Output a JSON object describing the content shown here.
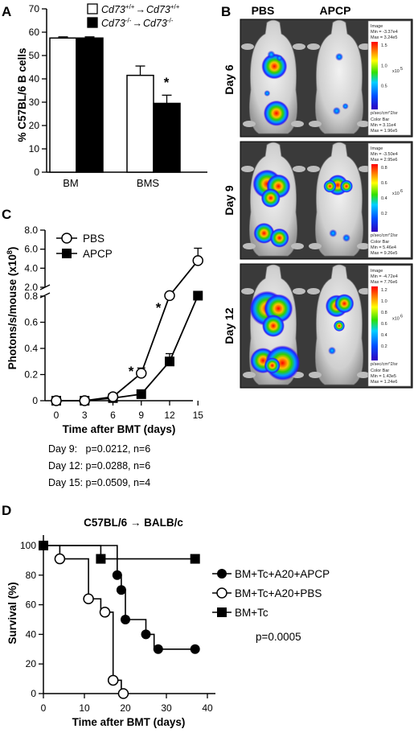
{
  "panels": {
    "A": "A",
    "B": "B",
    "C": "C",
    "D": "D"
  },
  "chart_data": [
    {
      "id": "A",
      "type": "bar",
      "ylabel": "% C57BL/6 B cells",
      "ylim": [
        0,
        70
      ],
      "yticks": [
        0,
        10,
        20,
        30,
        40,
        50,
        60,
        70
      ],
      "categories": [
        "BM",
        "BMS"
      ],
      "series": [
        {
          "name_sup_a": "Cd73",
          "name_sup_b": "+/+",
          "name_arrow": "→",
          "name_c": "Cd73",
          "name_sup_d": "+/+",
          "color": "#ffffff",
          "values": [
            57.5,
            41.5
          ],
          "errors": [
            0.5,
            4.0
          ]
        },
        {
          "name_sup_a": "Cd73",
          "name_sup_b": "-/-",
          "name_arrow": "→",
          "name_c": "Cd73",
          "name_sup_d": "-/-",
          "color": "#000000",
          "values": [
            57.5,
            29.5
          ],
          "errors": [
            0.5,
            3.5
          ]
        }
      ],
      "annotation": "*"
    },
    {
      "id": "C",
      "type": "line",
      "ylabel": "Photons/s/mouse (x10",
      "ylabel_sup": "8",
      "ylabel_end": ")",
      "xlabel": "Time after BMT (days)",
      "x": [
        0,
        3,
        6,
        9,
        12,
        15
      ],
      "upper_ticks": [
        "2.0",
        "4.0",
        "6.0",
        "8.0"
      ],
      "lower_ticks": [
        "0",
        "0.2",
        "0.4",
        "0.6",
        "0.8"
      ],
      "xticks": [
        "0",
        "3",
        "6",
        "9",
        "12",
        "15"
      ],
      "series": [
        {
          "name": "PBS",
          "marker": "open-circle",
          "values": [
            0.0,
            0.0,
            0.03,
            0.21,
            0.87,
            4.8
          ],
          "errors": [
            0.005,
            0.005,
            0.01,
            0.04,
            0.05,
            1.3
          ]
        },
        {
          "name": "APCP",
          "marker": "filled-square",
          "values": [
            0.0,
            0.0,
            0.02,
            0.05,
            0.3,
            0.86
          ],
          "errors": [
            0.005,
            0.005,
            0.01,
            0.02,
            0.06,
            0.1
          ]
        }
      ],
      "stars": [
        "*",
        "*"
      ],
      "stats": [
        "Day 9:   p=0.0212, n=6",
        "Day 12: p=0.0288, n=6",
        "Day 15: p=0.0509, n=4"
      ]
    },
    {
      "id": "D",
      "type": "line",
      "title": "C57BL/6 → BALB/c",
      "ylabel": "Survival (%)",
      "xlabel": "Time after BMT (days)",
      "xlim": [
        0,
        40
      ],
      "ylim": [
        0,
        100
      ],
      "xticks": [
        0,
        10,
        20,
        30,
        40
      ],
      "yticks": [
        0,
        20,
        40,
        60,
        80,
        100
      ],
      "series": [
        {
          "name": "BM+Tc+A20+APCP",
          "marker": "filled-circle",
          "steps": [
            [
              0,
              100
            ],
            [
              18,
              100
            ],
            [
              18,
              80
            ],
            [
              19,
              80
            ],
            [
              19,
              70
            ],
            [
              20,
              70
            ],
            [
              20,
              50
            ],
            [
              25,
              50
            ],
            [
              25,
              40
            ],
            [
              27,
              40
            ],
            [
              27,
              30
            ],
            [
              37,
              30
            ]
          ],
          "markers": [
            [
              18,
              80
            ],
            [
              19,
              70
            ],
            [
              20,
              50
            ],
            [
              25,
              40
            ],
            [
              28,
              30
            ],
            [
              37,
              30
            ]
          ]
        },
        {
          "name": "BM+Tc+A20+PBS",
          "marker": "open-circle",
          "steps": [
            [
              0,
              100
            ],
            [
              4,
              100
            ],
            [
              4,
              91
            ],
            [
              11,
              91
            ],
            [
              11,
              64
            ],
            [
              14,
              64
            ],
            [
              14,
              55
            ],
            [
              17,
              55
            ],
            [
              17,
              9
            ],
            [
              19,
              9
            ],
            [
              19,
              0
            ],
            [
              20,
              0
            ]
          ],
          "markers": [
            [
              4,
              91
            ],
            [
              11,
              64
            ],
            [
              15,
              55
            ],
            [
              17,
              9
            ],
            [
              19.5,
              0
            ]
          ]
        },
        {
          "name": "BM+Tc",
          "marker": "filled-square",
          "steps": [
            [
              0,
              100
            ],
            [
              14,
              100
            ],
            [
              14,
              91
            ],
            [
              37,
              91
            ]
          ],
          "markers": [
            [
              0,
              100
            ],
            [
              14,
              91
            ],
            [
              37,
              91
            ]
          ]
        }
      ],
      "pvalue": "p=0.0005"
    }
  ],
  "imaging": {
    "columns": [
      "PBS",
      "APCP"
    ],
    "rows": [
      {
        "day": "Day 6",
        "cb": [
          "Image",
          "Min = -3.37e4",
          "Max = 3.24e5",
          "1.5",
          "1.0",
          "0.5",
          "x10",
          "5",
          "p/sec/cm^2/sr",
          "Color Bar",
          "Min = 3.11e4",
          "Max = 1.96e5"
        ]
      },
      {
        "day": "Day 9",
        "cb": [
          "Image",
          "Min = -3.50e4",
          "Max = 2.95e6",
          "0.8",
          "0.6",
          "0.4",
          "0.2",
          "x10",
          "6",
          "p/sec/cm^2/sr",
          "Color Bar",
          "Min = 5.46e4",
          "Max = 9.26e5"
        ]
      },
      {
        "day": "Day 12",
        "cb": [
          "Image",
          "Min = -4.72e4",
          "Max = 7.76e6",
          "1.2",
          "1.0",
          "0.8",
          "0.6",
          "0.4",
          "0.2",
          "x10",
          "6",
          "p/sec/cm^2/sr",
          "Color Bar",
          "Min = 1.43e5",
          "Max = 1.24e6"
        ]
      }
    ]
  }
}
